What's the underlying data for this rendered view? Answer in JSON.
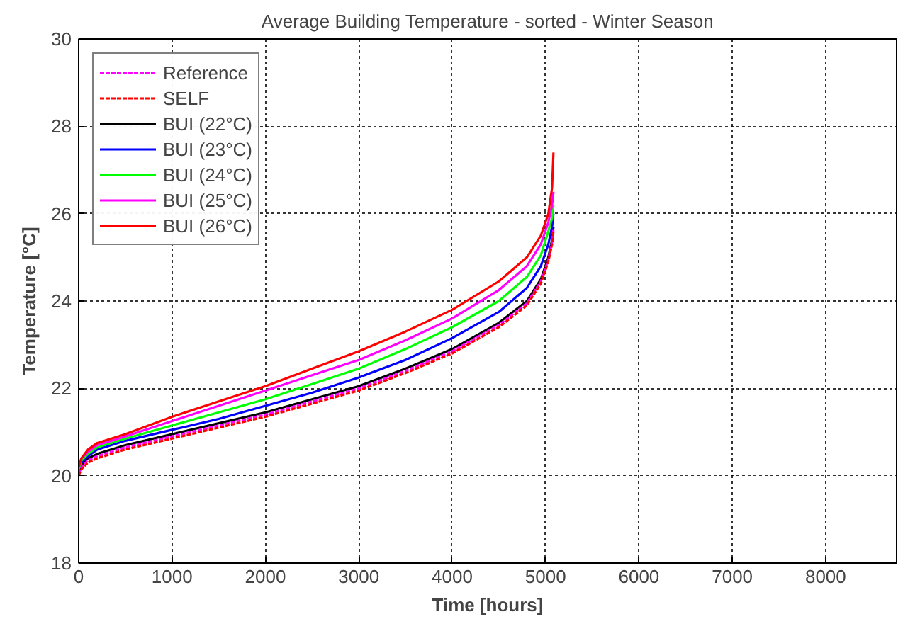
{
  "chart_data": {
    "type": "line",
    "title": "Average Building Temperature - sorted - Winter Season",
    "xlabel": "Time [hours]",
    "ylabel": "Temperature [°C]",
    "x": [
      0,
      30,
      100,
      200,
      500,
      1000,
      1500,
      2000,
      2500,
      3000,
      3500,
      4000,
      4500,
      4800,
      4950,
      5030,
      5070,
      5085
    ],
    "series": [
      {
        "name": "Reference",
        "color": "#ff00ff",
        "line_style": "dashed",
        "values": [
          20.05,
          20.2,
          20.35,
          20.45,
          20.65,
          20.9,
          21.15,
          21.4,
          21.7,
          22.0,
          22.4,
          22.85,
          23.45,
          23.95,
          24.45,
          24.95,
          25.35,
          25.65
        ]
      },
      {
        "name": "SELF",
        "color": "#ff0000",
        "line_style": "dashed",
        "values": [
          20.0,
          20.15,
          20.3,
          20.4,
          20.6,
          20.85,
          21.1,
          21.35,
          21.65,
          21.95,
          22.35,
          22.8,
          23.4,
          23.9,
          24.4,
          24.9,
          25.3,
          25.6
        ]
      },
      {
        "name": "BUI (22°C)",
        "color": "#000000",
        "values": [
          20.1,
          20.25,
          20.4,
          20.5,
          20.7,
          20.95,
          21.2,
          21.45,
          21.75,
          22.05,
          22.45,
          22.9,
          23.5,
          24.0,
          24.5,
          25.0,
          25.4,
          25.7
        ]
      },
      {
        "name": "BUI (23°C)",
        "color": "#0000ff",
        "values": [
          20.15,
          20.3,
          20.45,
          20.6,
          20.8,
          21.05,
          21.3,
          21.6,
          21.9,
          22.25,
          22.65,
          23.15,
          23.75,
          24.3,
          24.8,
          25.3,
          25.7,
          26.0
        ]
      },
      {
        "name": "BUI (24°C)",
        "color": "#00ff00",
        "values": [
          20.15,
          20.35,
          20.5,
          20.65,
          20.85,
          21.15,
          21.45,
          21.75,
          22.1,
          22.45,
          22.9,
          23.4,
          24.0,
          24.55,
          25.05,
          25.6,
          25.9,
          26.2
        ]
      },
      {
        "name": "BUI (25°C)",
        "color": "#ff00ff",
        "values": [
          20.2,
          20.4,
          20.55,
          20.7,
          20.9,
          21.25,
          21.6,
          21.95,
          22.3,
          22.65,
          23.1,
          23.6,
          24.25,
          24.8,
          25.3,
          25.8,
          26.2,
          26.5
        ]
      },
      {
        "name": "BUI (26°C)",
        "color": "#ff0000",
        "values": [
          20.2,
          20.4,
          20.6,
          20.75,
          20.95,
          21.35,
          21.7,
          22.05,
          22.45,
          22.85,
          23.3,
          23.8,
          24.45,
          25.0,
          25.5,
          26.0,
          26.6,
          27.4
        ]
      }
    ],
    "xlim": [
      0,
      8760
    ],
    "ylim": [
      18,
      30
    ],
    "xticks": [
      0,
      1000,
      2000,
      3000,
      4000,
      5000,
      6000,
      7000,
      8000
    ],
    "yticks": [
      18,
      20,
      22,
      24,
      26,
      28,
      30
    ],
    "grid": true,
    "legend": "top left",
    "line_style": "solid",
    "marker": "none"
  }
}
